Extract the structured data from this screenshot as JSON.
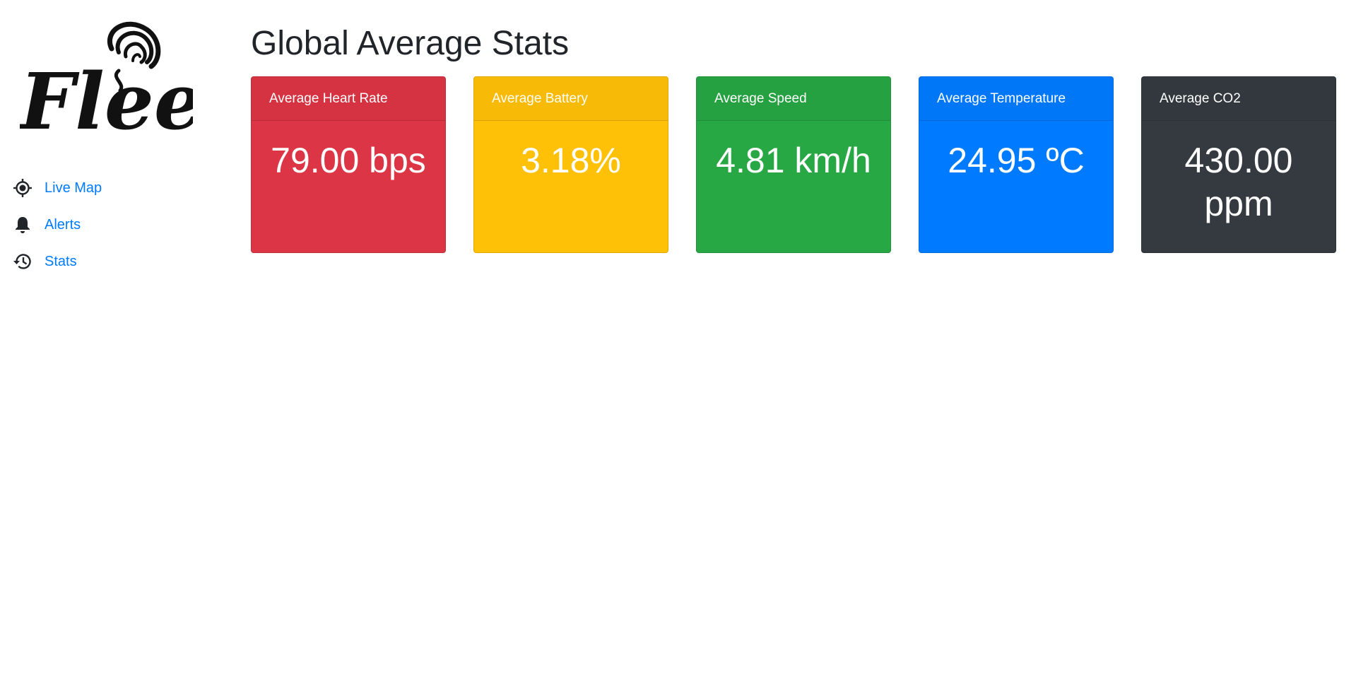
{
  "logo": {
    "text": "Fleet"
  },
  "nav": {
    "items": [
      {
        "label": "Live Map",
        "icon": "crosshair-icon"
      },
      {
        "label": "Alerts",
        "icon": "bell-icon"
      },
      {
        "label": "Stats",
        "icon": "history-icon"
      }
    ]
  },
  "main": {
    "title": "Global Average Stats",
    "cards": [
      {
        "header": "Average Heart Rate",
        "value": "79.00 bps",
        "color": "#dc3545"
      },
      {
        "header": "Average Battery",
        "value": "3.18%",
        "color": "#ffc107"
      },
      {
        "header": "Average Speed",
        "value": "4.81 km/h",
        "color": "#28a745"
      },
      {
        "header": "Average Temperature",
        "value": "24.95 ºC",
        "color": "#007bff"
      },
      {
        "header": "Average CO2",
        "value": "430.00 ppm",
        "color": "#343a40"
      }
    ]
  }
}
